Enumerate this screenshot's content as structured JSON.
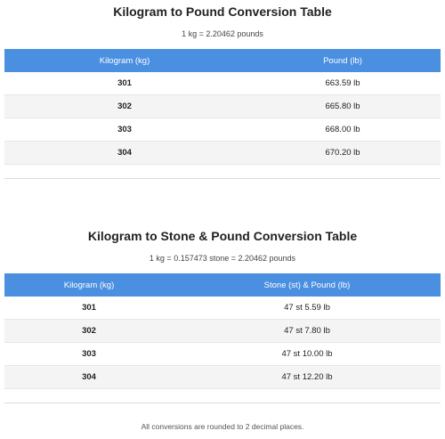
{
  "sections": [
    {
      "title": "Kilogram to Pound Conversion Table",
      "subtitle": "1 kg = 2.20462 pounds",
      "table": {
        "headers": [
          "Kilogram (kg)",
          "Pound (lb)"
        ],
        "rows": [
          [
            "301",
            "663.59 lb"
          ],
          [
            "302",
            "665.80 lb"
          ],
          [
            "303",
            "668.00 lb"
          ],
          [
            "304",
            "670.20 lb"
          ]
        ]
      }
    },
    {
      "title": "Kilogram to Stone & Pound Conversion Table",
      "subtitle": "1 kg = 0.157473 stone = 2.20462 pounds",
      "table": {
        "headers": [
          "Kilogram (kg)",
          "Stone (st) & Pound (lb)"
        ],
        "rows": [
          [
            "301",
            "47 st 5.59 lb"
          ],
          [
            "302",
            "47 st 7.80 lb"
          ],
          [
            "303",
            "47 st 10.00 lb"
          ],
          [
            "304",
            "47 st 12.20 lb"
          ]
        ]
      }
    }
  ],
  "footer": "All conversions are rounded to 2 decimal places."
}
